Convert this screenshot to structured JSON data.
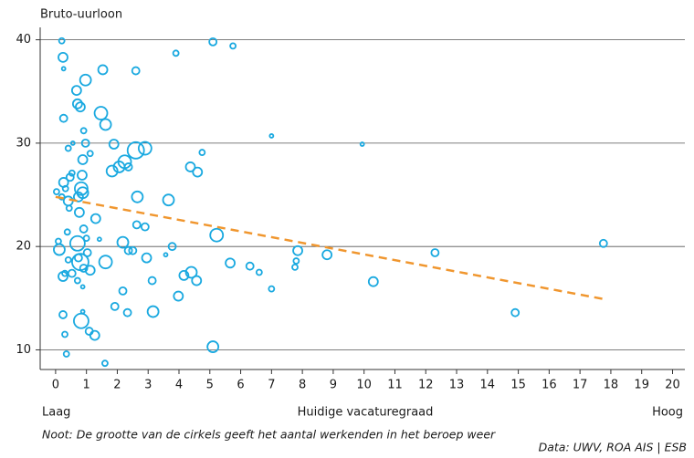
{
  "chart_data": {
    "type": "scatter",
    "y_label": "Bruto-uurloon",
    "x_label": "Huidige vacaturegraad",
    "x_low_label": "Laag",
    "x_high_label": "Hoog",
    "note": "Noot: De grootte van de cirkels geeft het aantal werkenden in het beroep weer",
    "source": "Data: UWV, ROA AIS | ESB",
    "xlim": [
      -0.5,
      20.4
    ],
    "ylim": [
      8.1,
      41.2
    ],
    "xticks": [
      0,
      1,
      2,
      3,
      4,
      5,
      6,
      7,
      8,
      9,
      10,
      11,
      12,
      13,
      14,
      15,
      16,
      17,
      18,
      19,
      20
    ],
    "yticks": [
      10,
      20,
      30,
      40
    ],
    "grid": true,
    "series": [
      {
        "color": "#1aa9e0",
        "x": [
          0.2,
          0.24,
          0.26,
          0.68,
          0.97,
          1.53,
          2.6,
          3.9,
          5.1,
          5.75,
          0.71,
          0.8,
          0.26,
          1.47,
          1.62,
          0.91,
          0.56,
          0.97,
          1.89,
          0.41,
          1.12,
          0.88,
          2.6,
          2.9,
          4.75,
          7.0,
          9.94,
          2.24,
          2.06,
          1.83,
          2.36,
          4.37,
          4.6,
          0.53,
          0.47,
          0.86,
          0.26,
          0.32,
          0.83,
          0.03,
          0.88,
          0.2,
          0.41,
          0.44,
          0.74,
          2.65,
          3.66,
          0.77,
          1.3,
          2.63,
          2.9,
          0.91,
          0.38,
          5.22,
          0.09,
          0.12,
          0.71,
          1.0,
          2.18,
          1.42,
          3.78,
          1.03,
          2.36,
          2.5,
          2.95,
          3.57,
          7.85,
          8.8,
          12.3,
          17.76,
          0.41,
          0.8,
          0.74,
          1.62,
          5.66,
          6.3,
          6.6,
          7.8,
          7.76,
          0.91,
          1.12,
          0.24,
          0.53,
          0.3,
          4.16,
          4.4,
          4.57,
          3.13,
          10.3,
          0.71,
          0.88,
          7.0,
          2.18,
          3.98,
          0.24,
          0.88,
          0.83,
          1.92,
          2.33,
          3.16,
          14.9,
          1.09,
          1.27,
          0.3,
          5.1,
          0.35,
          1.6
        ],
        "values": [
          39.9,
          38.3,
          37.2,
          35.1,
          36.1,
          37.1,
          37.0,
          38.7,
          39.8,
          39.4,
          33.8,
          33.5,
          32.4,
          32.9,
          31.8,
          31.2,
          30.0,
          30.0,
          29.9,
          29.5,
          29.0,
          28.4,
          29.3,
          29.5,
          29.1,
          30.7,
          29.9,
          28.2,
          27.7,
          27.3,
          27.7,
          27.7,
          27.2,
          27.1,
          26.7,
          26.9,
          26.2,
          25.6,
          25.6,
          25.3,
          25.2,
          24.8,
          24.4,
          23.7,
          24.8,
          24.8,
          24.5,
          23.3,
          22.7,
          22.1,
          21.9,
          21.7,
          21.4,
          21.1,
          20.5,
          19.7,
          20.3,
          20.8,
          20.4,
          20.7,
          20.0,
          19.4,
          19.6,
          19.6,
          18.9,
          19.2,
          19.6,
          19.2,
          19.4,
          20.3,
          18.7,
          18.5,
          18.9,
          18.5,
          18.4,
          18.1,
          17.5,
          18.6,
          18.0,
          17.9,
          17.7,
          17.1,
          17.4,
          17.4,
          17.2,
          17.5,
          16.7,
          16.7,
          16.6,
          16.7,
          16.1,
          15.9,
          15.7,
          15.2,
          13.4,
          13.7,
          12.8,
          14.2,
          13.6,
          13.7,
          13.6,
          11.8,
          11.4,
          11.5,
          10.3,
          9.6,
          8.7
        ],
        "sizes": [
          3,
          5,
          2,
          5,
          6,
          5,
          4,
          3,
          4,
          3,
          5,
          5,
          4,
          7,
          6,
          3,
          2,
          4,
          5,
          3,
          3,
          5,
          9,
          7,
          3,
          2,
          2,
          7,
          6,
          6,
          4,
          5,
          5,
          3,
          4,
          5,
          5,
          3,
          7,
          3,
          6,
          3,
          5,
          3,
          5,
          6,
          6,
          5,
          5,
          4,
          4,
          4,
          3,
          7,
          3,
          6,
          8,
          3,
          6,
          2,
          4,
          4,
          4,
          4,
          5,
          2,
          5,
          5,
          4,
          4,
          3,
          9,
          4,
          7,
          5,
          4,
          3,
          3,
          3,
          4,
          5,
          5,
          4,
          3,
          5,
          6,
          5,
          4,
          5,
          3,
          2,
          3,
          4,
          5,
          4,
          2,
          8,
          4,
          4,
          6,
          4,
          4,
          5,
          3,
          6,
          3,
          3
        ]
      }
    ],
    "trendline": {
      "x": [
        0,
        17.8
      ],
      "values": [
        24.8,
        14.9
      ],
      "color": "#f0962e",
      "dashed": true
    }
  }
}
